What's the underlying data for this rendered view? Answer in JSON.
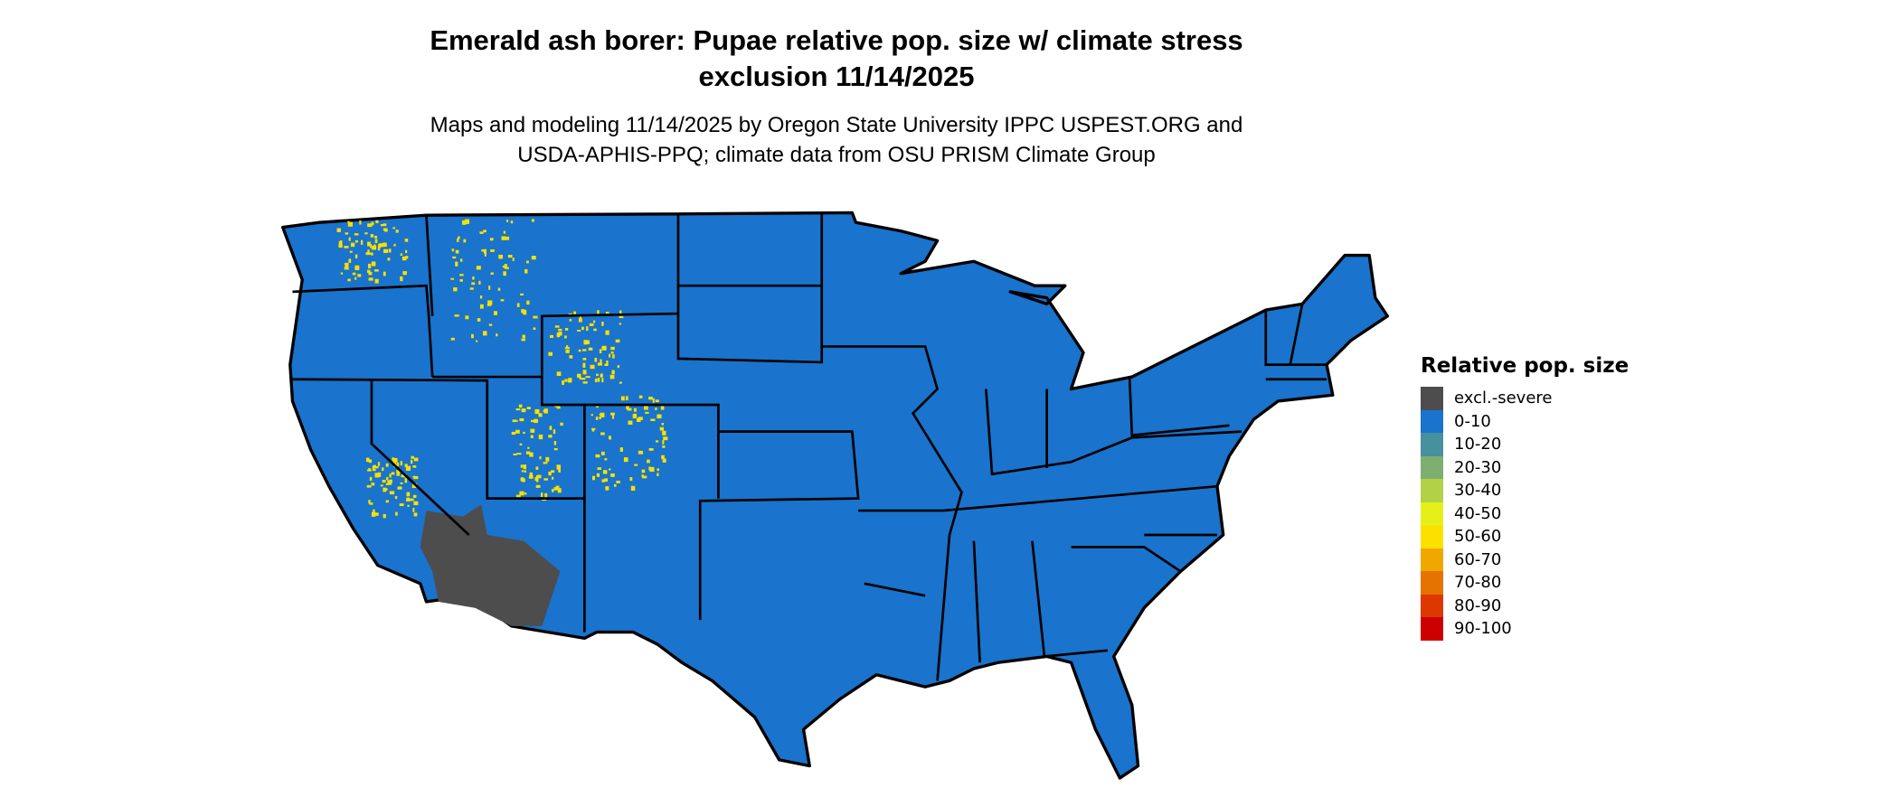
{
  "title": {
    "line1": "Emerald ash borer: Pupae relative pop. size w/ climate stress",
    "line2": "exclusion 11/14/2025"
  },
  "subtitle": {
    "line1": "Maps and modeling 11/14/2025 by Oregon State University IPPC USPEST.ORG and",
    "line2": "USDA-APHIS-PPQ; climate data from OSU PRISM Climate Group"
  },
  "map": {
    "region": "Conterminous United States",
    "dominant_class": "0-10",
    "colors": {
      "land": "#1a73cc",
      "border": "#000000",
      "excluded": "#4d4d4d",
      "high": "#f5e100"
    }
  },
  "legend": {
    "title": "Relative pop. size",
    "items": [
      {
        "label": "excl.-severe",
        "color": "#4d4d4d"
      },
      {
        "label": "0-10",
        "color": "#1a73cc"
      },
      {
        "label": "10-20",
        "color": "#46919e"
      },
      {
        "label": "20-30",
        "color": "#7daf70"
      },
      {
        "label": "30-40",
        "color": "#b3d147"
      },
      {
        "label": "40-50",
        "color": "#e5f01a"
      },
      {
        "label": "50-60",
        "color": "#fae100"
      },
      {
        "label": "60-70",
        "color": "#f0a800"
      },
      {
        "label": "70-80",
        "color": "#e57300"
      },
      {
        "label": "80-90",
        "color": "#dc3800"
      },
      {
        "label": "90-100",
        "color": "#cc0000"
      }
    ]
  }
}
